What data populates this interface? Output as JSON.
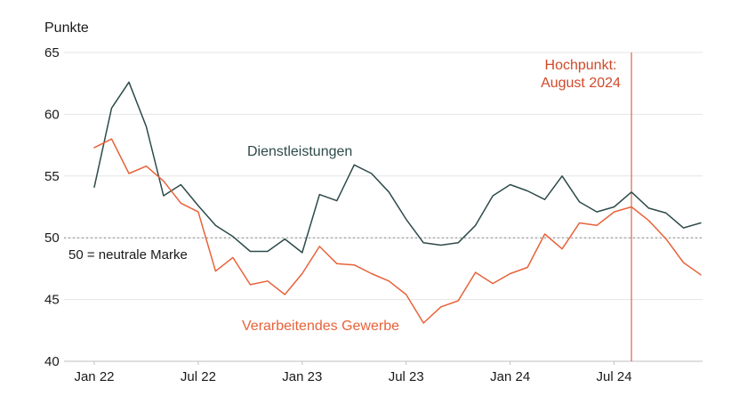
{
  "chart_data": {
    "type": "line",
    "title": "",
    "xlabel": "",
    "ylabel": "Punkte",
    "ylim": [
      40,
      65
    ],
    "yticks": [
      40,
      45,
      50,
      55,
      60,
      65
    ],
    "x": [
      "2022-01",
      "2022-02",
      "2022-03",
      "2022-04",
      "2022-05",
      "2022-06",
      "2022-07",
      "2022-08",
      "2022-09",
      "2022-10",
      "2022-11",
      "2022-12",
      "2023-01",
      "2023-02",
      "2023-03",
      "2023-04",
      "2023-05",
      "2023-06",
      "2023-07",
      "2023-08",
      "2023-09",
      "2023-10",
      "2023-11",
      "2023-12",
      "2024-01",
      "2024-02",
      "2024-03",
      "2024-04",
      "2024-05",
      "2024-06",
      "2024-07",
      "2024-08",
      "2024-09",
      "2024-10",
      "2024-11",
      "2024-12"
    ],
    "xtick_labels": [
      {
        "label": "Jan 22",
        "x": "2022-01"
      },
      {
        "label": "Jul 22",
        "x": "2022-07"
      },
      {
        "label": "Jan 23",
        "x": "2023-01"
      },
      {
        "label": "Jul 23",
        "x": "2023-07"
      },
      {
        "label": "Jan 24",
        "x": "2024-01"
      },
      {
        "label": "Jul 24",
        "x": "2024-07"
      }
    ],
    "series": [
      {
        "name": "Dienstleistungen",
        "color": "#2e4a4a",
        "values": [
          54.1,
          60.5,
          62.6,
          59.0,
          53.4,
          54.3,
          52.6,
          51.0,
          50.1,
          48.9,
          48.9,
          49.9,
          48.8,
          53.5,
          53.0,
          55.9,
          55.2,
          53.7,
          51.5,
          49.6,
          49.4,
          49.6,
          51.0,
          53.4,
          54.3,
          53.8,
          53.1,
          55.0,
          52.9,
          52.1,
          52.5,
          53.7,
          52.4,
          52.0,
          50.8,
          51.2
        ]
      },
      {
        "name": "Verarbeitendes Gewerbe",
        "color": "#e8623a",
        "values": [
          57.3,
          58.0,
          55.2,
          55.8,
          54.6,
          52.8,
          52.1,
          47.3,
          48.4,
          46.2,
          46.5,
          45.4,
          47.1,
          49.3,
          47.9,
          47.8,
          47.1,
          46.5,
          45.4,
          43.1,
          44.4,
          44.9,
          47.2,
          46.3,
          47.1,
          47.6,
          50.3,
          49.1,
          51.2,
          51.0,
          52.1,
          52.5,
          51.4,
          49.9,
          48.0,
          47.0
        ]
      }
    ],
    "reference_lines": [
      {
        "axis": "y",
        "value": 50,
        "label": "50 = neutrale Marke",
        "style": "dotted",
        "color": "#888888"
      }
    ],
    "annotations": [
      {
        "x": "2024-08",
        "lines": [
          "Hochpunkt:",
          "August 2024"
        ],
        "color": "#d04a2a"
      }
    ],
    "grid": true,
    "legend": "none"
  }
}
